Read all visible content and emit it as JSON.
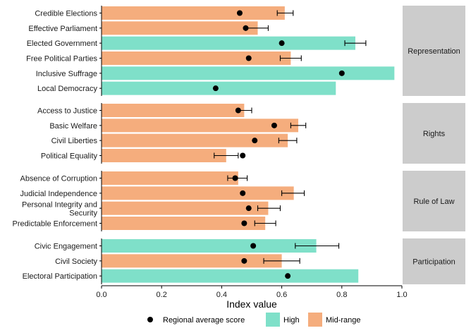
{
  "chart_data": {
    "type": "bar",
    "orientation": "horizontal",
    "title": "",
    "xlabel": "Index value",
    "ylabel": "",
    "xlim": [
      0,
      1.0
    ],
    "xticks": [
      "0.0",
      "0.2",
      "0.4",
      "0.6",
      "0.8",
      "1.0"
    ],
    "grid": false,
    "legend_position": "bottom",
    "legend": {
      "dot_label": "Regional average score",
      "high_label": "High",
      "mid_label": "Mid-range"
    },
    "colors": {
      "High": "#7FE0C9",
      "Mid-range": "#F5AD7D",
      "dot": "#000000",
      "panel_strip": "#CCCCCC"
    },
    "panels": [
      {
        "name": "Representation",
        "items": [
          {
            "label": "Credible Elections",
            "value": 0.61,
            "level": "Mid-range",
            "avg": 0.46,
            "err": [
              0.585,
              0.638
            ]
          },
          {
            "label": "Effective Parliament",
            "value": 0.52,
            "level": "Mid-range",
            "avg": 0.48,
            "err": [
              0.48,
              0.555
            ]
          },
          {
            "label": "Elected Government",
            "value": 0.845,
            "level": "High",
            "avg": 0.6,
            "err": [
              0.81,
              0.88
            ]
          },
          {
            "label": "Free Political Parties",
            "value": 0.63,
            "level": "Mid-range",
            "avg": 0.49,
            "err": [
              0.595,
              0.665
            ]
          },
          {
            "label": "Inclusive Suffrage",
            "value": 0.975,
            "level": "High",
            "avg": 0.8,
            "err": null
          },
          {
            "label": "Local Democracy",
            "value": 0.78,
            "level": "High",
            "avg": 0.38,
            "err": null
          }
        ]
      },
      {
        "name": "Rights",
        "items": [
          {
            "label": "Access to Justice",
            "value": 0.475,
            "level": "Mid-range",
            "avg": 0.455,
            "err": [
              0.455,
              0.5
            ]
          },
          {
            "label": "Basic Welfare",
            "value": 0.655,
            "level": "Mid-range",
            "avg": 0.575,
            "err": [
              0.63,
              0.68
            ]
          },
          {
            "label": "Civil Liberties",
            "value": 0.62,
            "level": "Mid-range",
            "avg": 0.51,
            "err": [
              0.59,
              0.65
            ]
          },
          {
            "label": "Political Equality",
            "value": 0.415,
            "level": "Mid-range",
            "avg": 0.47,
            "err": [
              0.375,
              0.455
            ]
          }
        ]
      },
      {
        "name": "Rule of Law",
        "items": [
          {
            "label": "Absence of Corruption",
            "value": 0.455,
            "level": "Mid-range",
            "avg": 0.445,
            "err": [
              0.42,
              0.485
            ]
          },
          {
            "label": "Judicial Independence",
            "value": 0.64,
            "level": "Mid-range",
            "avg": 0.47,
            "err": [
              0.6,
              0.675
            ]
          },
          {
            "label": "Personal Integrity and Security",
            "value": 0.555,
            "level": "Mid-range",
            "avg": 0.49,
            "err": [
              0.52,
              0.595
            ]
          },
          {
            "label": "Predictable Enforcement",
            "value": 0.545,
            "level": "Mid-range",
            "avg": 0.475,
            "err": [
              0.51,
              0.58
            ]
          }
        ]
      },
      {
        "name": "Participation",
        "items": [
          {
            "label": "Civic Engagement",
            "value": 0.715,
            "level": "High",
            "avg": 0.505,
            "err": [
              0.645,
              0.79
            ]
          },
          {
            "label": "Civil Society",
            "value": 0.6,
            "level": "Mid-range",
            "avg": 0.475,
            "err": [
              0.54,
              0.66
            ]
          },
          {
            "label": "Electoral Participation",
            "value": 0.855,
            "level": "High",
            "avg": 0.62,
            "err": null
          }
        ]
      }
    ]
  }
}
